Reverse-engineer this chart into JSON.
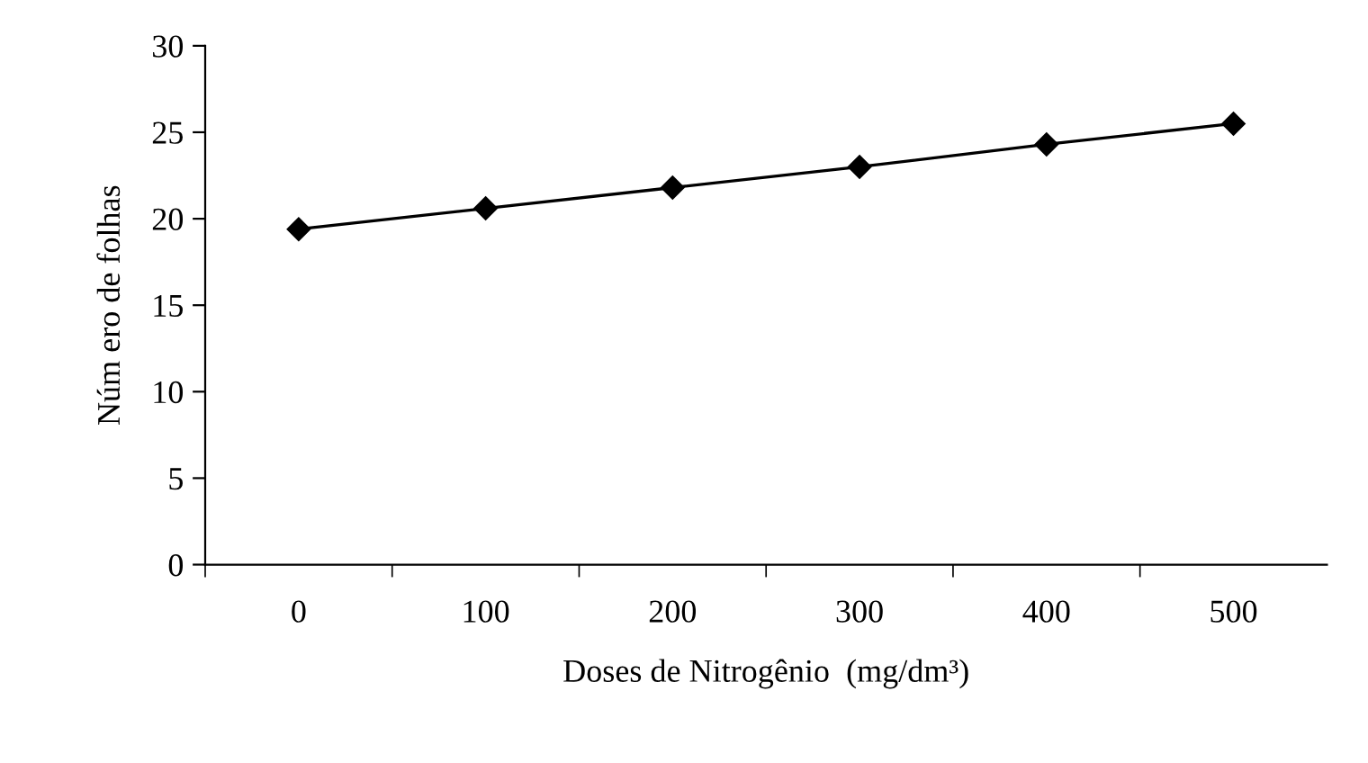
{
  "chart_data": {
    "type": "line",
    "xlabel": "Doses de Nitrogênio  (mg/dm³)",
    "ylabel": "Núm ero de folhas",
    "categories": [
      "0",
      "100",
      "200",
      "300",
      "400",
      "500"
    ],
    "series": [
      {
        "color": "#000000",
        "values": [
          19.4,
          20.6,
          21.8,
          23.0,
          24.3,
          25.5
        ]
      }
    ],
    "ylim": [
      0,
      30
    ],
    "yticks": [
      0,
      5,
      10,
      15,
      20,
      25,
      30
    ],
    "grid": false,
    "legend": false,
    "marker": "diamond",
    "line_style": "solid"
  }
}
